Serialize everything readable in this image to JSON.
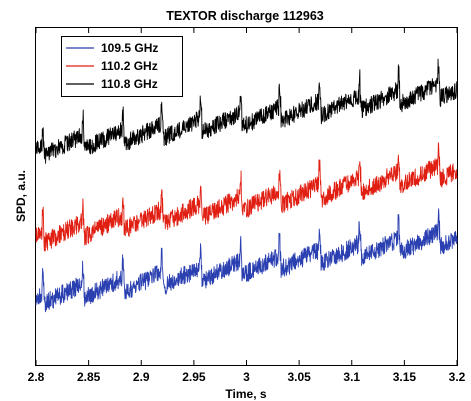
{
  "chart_data": {
    "type": "line",
    "title": "TEXTOR discharge 112963",
    "xlabel": "Time, s",
    "ylabel": "SPD, a.u.",
    "xlim": [
      2.8,
      3.2
    ],
    "ylim": [
      0,
      1
    ],
    "x_ticks": [
      2.8,
      2.85,
      2.9,
      2.95,
      3.0,
      3.05,
      3.1,
      3.15,
      3.2
    ],
    "x_tick_labels": [
      "2.8",
      "2.85",
      "2.9",
      "2.95",
      "3",
      "3.05",
      "3.1",
      "3.15",
      "3.2"
    ],
    "y_ticks_labeled": false,
    "grid": false,
    "legend": {
      "position": "top-left"
    },
    "sawtooth_crash_times": [
      2.807,
      2.845,
      2.883,
      2.92,
      2.957,
      2.995,
      3.032,
      3.07,
      3.108,
      3.145,
      3.183
    ],
    "series": [
      {
        "name": "109.5 GHz",
        "color": "#2a3fb0",
        "start_level": 0.2,
        "end_level": 0.38,
        "noise": 0.028,
        "crash_drop": 0.045
      },
      {
        "name": "110.2 GHz",
        "color": "#e01f12",
        "start_level": 0.38,
        "end_level": 0.58,
        "noise": 0.028,
        "crash_drop": 0.045
      },
      {
        "name": "110.8 GHz",
        "color": "#000000",
        "start_level": 0.64,
        "end_level": 0.82,
        "noise": 0.026,
        "crash_drop": 0.045
      }
    ]
  }
}
